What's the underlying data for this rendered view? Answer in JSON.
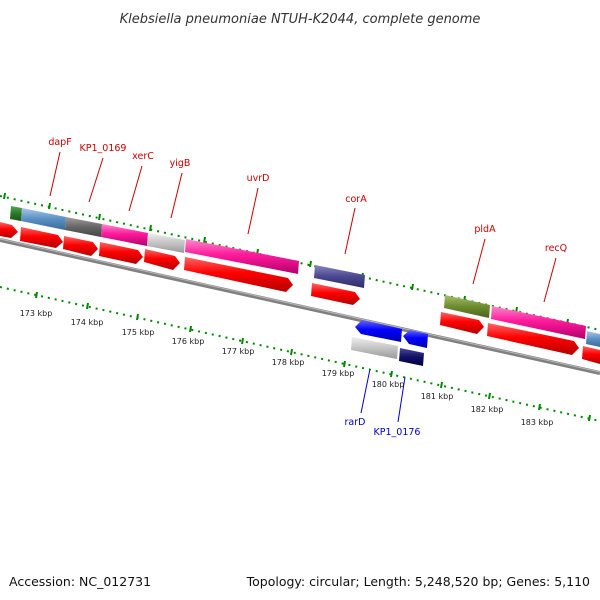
{
  "header": {
    "title": "Klebsiella pneumoniae NTUH-K2044, complete genome"
  },
  "footer": {
    "accession": "Accession: NC_012731",
    "summary": "Topology: circular; Length: 5,248,520 bp; Genes: 5,110"
  },
  "labels": {
    "forward_genes": [
      "dapF",
      "KP1_0169",
      "xerC",
      "yigB",
      "uvrD",
      "corA",
      "pldA",
      "recQ"
    ],
    "reverse_genes": [
      "rarD",
      "KP1_0176"
    ],
    "kbp_ticks": [
      "173 kbp",
      "174 kbp",
      "175 kbp",
      "176 kbp",
      "177 kbp",
      "178 kbp",
      "179 kbp",
      "180 kbp",
      "181 kbp",
      "182 kbp",
      "183 kbp"
    ]
  },
  "colors": {
    "forward_label": "#cc0000",
    "reverse_label": "#0000cc",
    "cds_arrow": "#ff0000",
    "tick_dots": "#008800",
    "backbone": "#808080"
  }
}
